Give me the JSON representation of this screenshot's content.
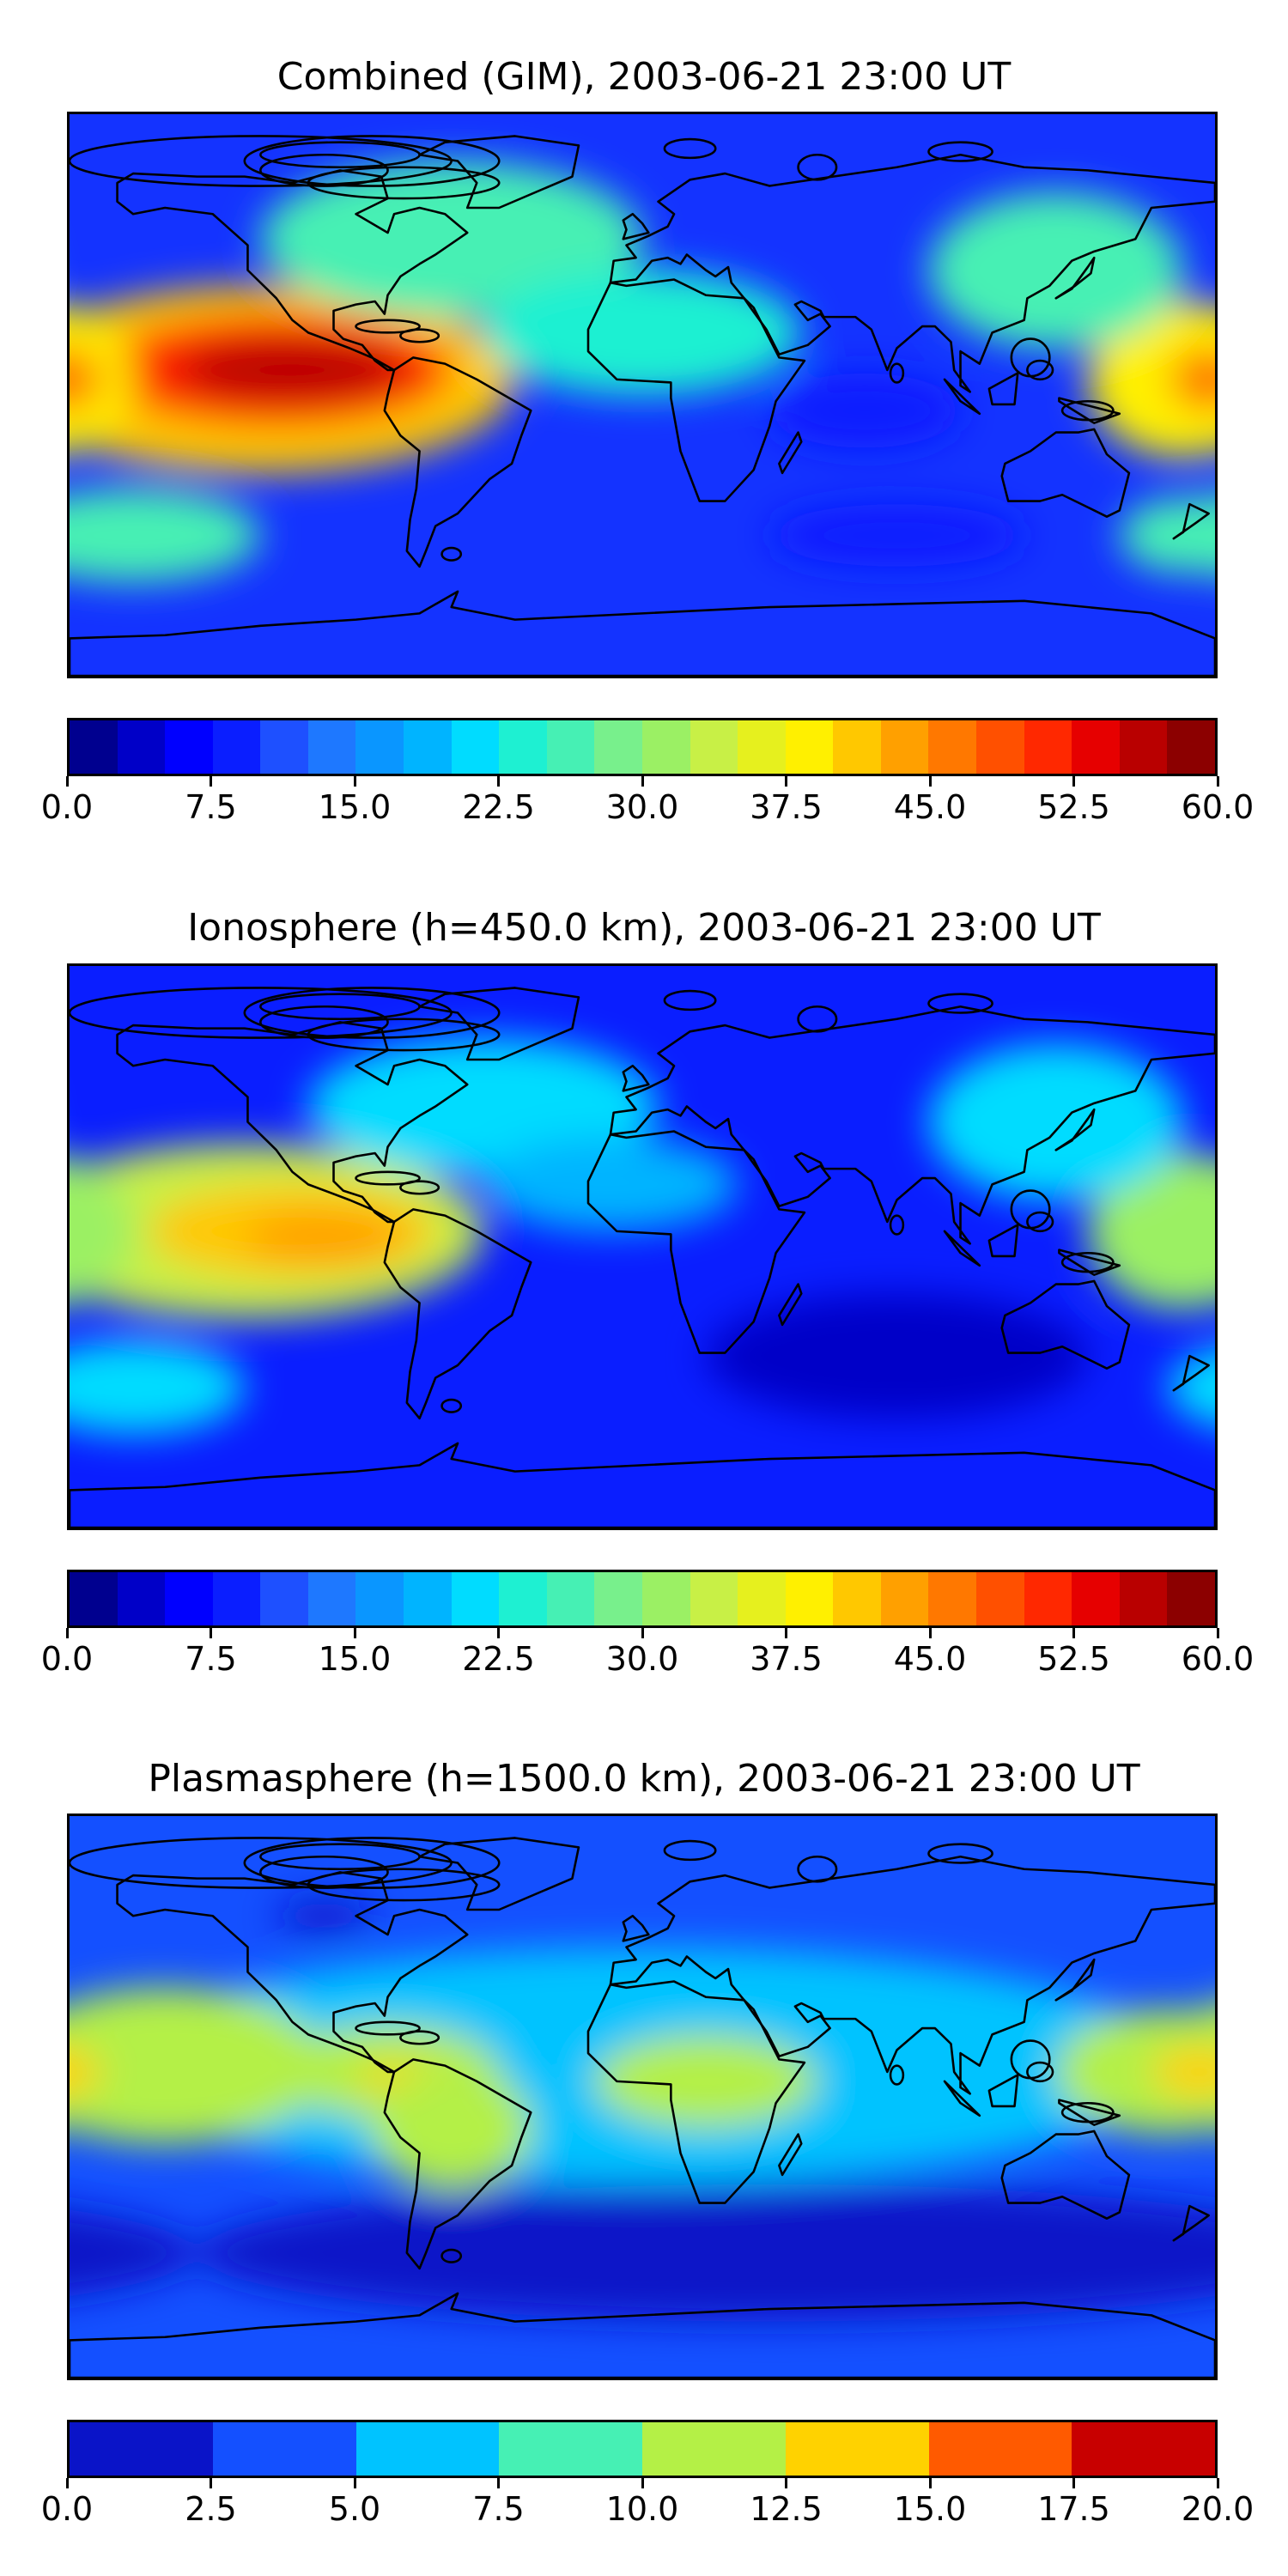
{
  "panels": [
    {
      "title": "Combined (GIM), 2003-06-21 23:00 UT",
      "colorbar": {
        "ticks": [
          "0.0",
          "7.5",
          "15.0",
          "22.5",
          "30.0",
          "37.5",
          "45.0",
          "52.5",
          "60.0"
        ],
        "min": 0,
        "max": 60,
        "step": 2.5,
        "colors": [
          "#00008f",
          "#0000c8",
          "#0000ff",
          "#0a1eff",
          "#1e50ff",
          "#1e78ff",
          "#0a96ff",
          "#00b4ff",
          "#00dcff",
          "#1ef0d2",
          "#46f0b4",
          "#78f08c",
          "#9bf064",
          "#c8f046",
          "#e6f01e",
          "#fff000",
          "#ffc800",
          "#ffa000",
          "#ff7800",
          "#ff5000",
          "#ff2800",
          "#e60000",
          "#b90000",
          "#8c0000"
        ]
      },
      "field": {
        "background": "#1433ff",
        "blobs": [
          {
            "lon": -120,
            "lat": 5,
            "rx": 80,
            "ry": 30,
            "value": 40
          },
          {
            "lon": -115,
            "lat": 8,
            "rx": 55,
            "ry": 18,
            "value": 50
          },
          {
            "lon": -110,
            "lat": 8,
            "rx": 35,
            "ry": 10,
            "value": 55
          },
          {
            "lon": 170,
            "lat": 5,
            "rx": 30,
            "ry": 25,
            "value": 38
          },
          {
            "lon": 178,
            "lat": 5,
            "rx": 12,
            "ry": 10,
            "value": 46
          },
          {
            "lon": -60,
            "lat": 50,
            "rx": 60,
            "ry": 25,
            "value": 27
          },
          {
            "lon": 0,
            "lat": 20,
            "rx": 50,
            "ry": 20,
            "value": 24
          },
          {
            "lon": 130,
            "lat": 40,
            "rx": 40,
            "ry": 25,
            "value": 27
          },
          {
            "lon": -160,
            "lat": -45,
            "rx": 40,
            "ry": 15,
            "value": 25
          },
          {
            "lon": 170,
            "lat": -45,
            "rx": 20,
            "ry": 12,
            "value": 25
          },
          {
            "lon": 80,
            "lat": -45,
            "rx": 40,
            "ry": 10,
            "value": 8
          },
          {
            "lon": 70,
            "lat": -5,
            "rx": 30,
            "ry": 12,
            "value": 8
          }
        ]
      }
    },
    {
      "title": "Ionosphere  (h=450.0 km), 2003-06-21 23:00 UT",
      "colorbar": {
        "ticks": [
          "0.0",
          "7.5",
          "15.0",
          "22.5",
          "30.0",
          "37.5",
          "45.0",
          "52.5",
          "60.0"
        ],
        "min": 0,
        "max": 60,
        "step": 2.5,
        "colors": [
          "#00008f",
          "#0000c8",
          "#0000ff",
          "#0a1eff",
          "#1e50ff",
          "#1e78ff",
          "#0a96ff",
          "#00b4ff",
          "#00dcff",
          "#1ef0d2",
          "#46f0b4",
          "#78f08c",
          "#9bf064",
          "#c8f046",
          "#e6f01e",
          "#fff000",
          "#ffc800",
          "#ffa000",
          "#ff7800",
          "#ff5000",
          "#ff2800",
          "#e60000",
          "#b90000",
          "#8c0000"
        ]
      },
      "field": {
        "background": "#0a1eff",
        "blobs": [
          {
            "lon": -125,
            "lat": 5,
            "rx": 75,
            "ry": 28,
            "value": 33
          },
          {
            "lon": -110,
            "lat": 5,
            "rx": 45,
            "ry": 15,
            "value": 40
          },
          {
            "lon": -100,
            "lat": 3,
            "rx": 25,
            "ry": 8,
            "value": 43
          },
          {
            "lon": 170,
            "lat": 5,
            "rx": 30,
            "ry": 25,
            "value": 30
          },
          {
            "lon": -50,
            "lat": 45,
            "rx": 55,
            "ry": 22,
            "value": 22
          },
          {
            "lon": 130,
            "lat": 40,
            "rx": 40,
            "ry": 25,
            "value": 22
          },
          {
            "lon": -160,
            "lat": -45,
            "rx": 35,
            "ry": 15,
            "value": 20
          },
          {
            "lon": -10,
            "lat": 20,
            "rx": 40,
            "ry": 15,
            "value": 18
          },
          {
            "lon": 80,
            "lat": -35,
            "rx": 60,
            "ry": 20,
            "value": 4
          }
        ]
      }
    },
    {
      "title": "Plasmasphere (h=1500.0 km), 2003-06-21 23:00 UT",
      "colorbar": {
        "ticks": [
          "0.0",
          "2.5",
          "5.0",
          "7.5",
          "10.0",
          "12.5",
          "15.0",
          "17.5",
          "20.0"
        ],
        "min": 0,
        "max": 20,
        "step": 2.5,
        "colors": [
          "#0a14c8",
          "#1450ff",
          "#00c3ff",
          "#46f0b4",
          "#b4f046",
          "#ffd200",
          "#ff5a00",
          "#c80000"
        ]
      },
      "field": {
        "background": "#1450ff",
        "blobs": [
          {
            "lon": 0,
            "lat": 10,
            "rx": 170,
            "ry": 38,
            "value": 6
          },
          {
            "lon": -150,
            "lat": 10,
            "rx": 50,
            "ry": 25,
            "value": 10
          },
          {
            "lon": -175,
            "lat": 10,
            "rx": 15,
            "ry": 8,
            "value": 13
          },
          {
            "lon": -80,
            "lat": 8,
            "rx": 35,
            "ry": 15,
            "value": 11
          },
          {
            "lon": -70,
            "lat": 6,
            "rx": 20,
            "ry": 5,
            "value": 13
          },
          {
            "lon": 20,
            "lat": 5,
            "rx": 35,
            "ry": 15,
            "value": 10
          },
          {
            "lon": 165,
            "lat": 8,
            "rx": 35,
            "ry": 20,
            "value": 11
          },
          {
            "lon": 175,
            "lat": 8,
            "rx": 15,
            "ry": 8,
            "value": 13
          },
          {
            "lon": -60,
            "lat": -10,
            "rx": 25,
            "ry": 20,
            "value": 10
          },
          {
            "lon": 40,
            "lat": -50,
            "rx": 180,
            "ry": 22,
            "value": 1
          },
          {
            "lon": -100,
            "lat": 58,
            "rx": 15,
            "ry": 5,
            "value": 1
          }
        ]
      }
    }
  ]
}
